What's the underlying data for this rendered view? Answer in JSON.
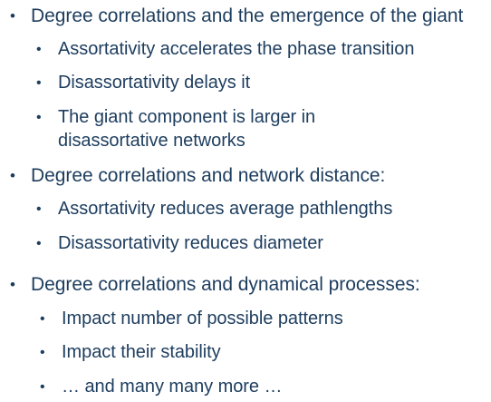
{
  "bullet_glyph": "•",
  "text_color": "#1d3d5e",
  "sections": [
    {
      "text": "Degree correlations and the emergence of the giant",
      "items": [
        "Assortativity accelerates the phase transition",
        "Disassortativity delays it",
        "The giant component is larger in",
        "disassortative networks"
      ]
    },
    {
      "text": "Degree correlations and network distance:",
      "items": [
        "Assortativity reduces average pathlengths",
        "Disassortativity reduces diameter"
      ]
    },
    {
      "text": "Degree correlations and dynamical processes:",
      "items": [
        "Impact number of possible patterns",
        "Impact their stability",
        "… and many many more …"
      ]
    }
  ]
}
